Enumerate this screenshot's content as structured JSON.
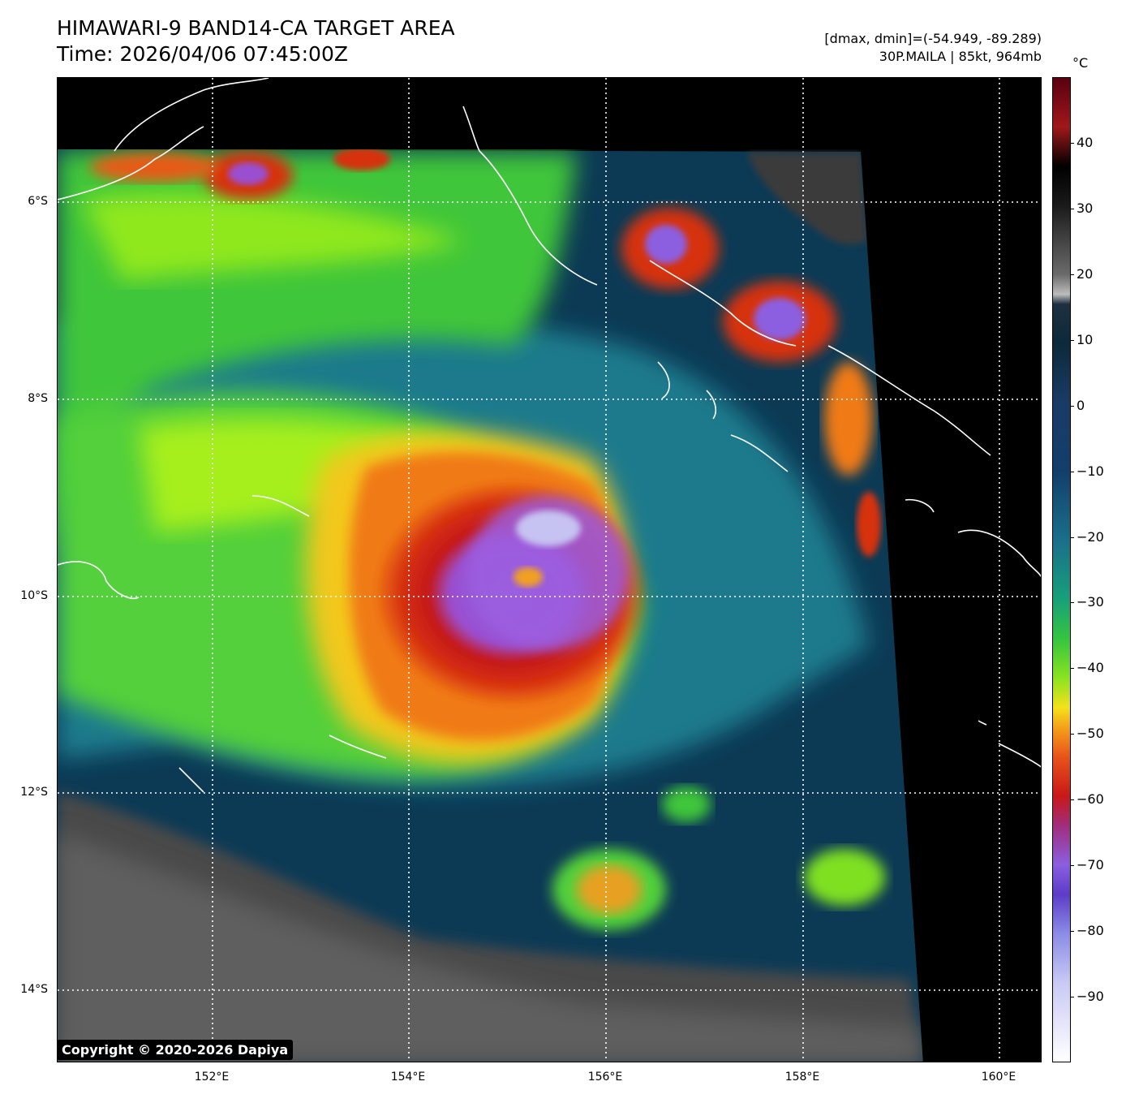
{
  "header": {
    "title": "HIMAWARI-9 BAND14-CA TARGET AREA",
    "time": "Time: 2026/04/06 07:45:00Z",
    "range": "[dmax, dmin]=(-54.949, -89.289)",
    "storm": "30P.MAILA | 85kt, 964mb"
  },
  "axes": {
    "lat_labels": [
      "6°S",
      "8°S",
      "10°S",
      "12°S",
      "14°S"
    ],
    "lon_labels": [
      "152°E",
      "154°E",
      "156°E",
      "158°E",
      "160°E"
    ],
    "lon_range": [
      150.5,
      160.5
    ],
    "lat_range": [
      -4.75,
      -14.75
    ]
  },
  "colorbar": {
    "unit": "°C",
    "ticks": [
      "40",
      "30",
      "20",
      "10",
      "0",
      "−10",
      "−20",
      "−30",
      "−40",
      "−50",
      "−60",
      "−70",
      "−80",
      "−90"
    ],
    "range": [
      50,
      -100
    ]
  },
  "copyright": "Copyright © 2020-2026 Dapiya"
}
